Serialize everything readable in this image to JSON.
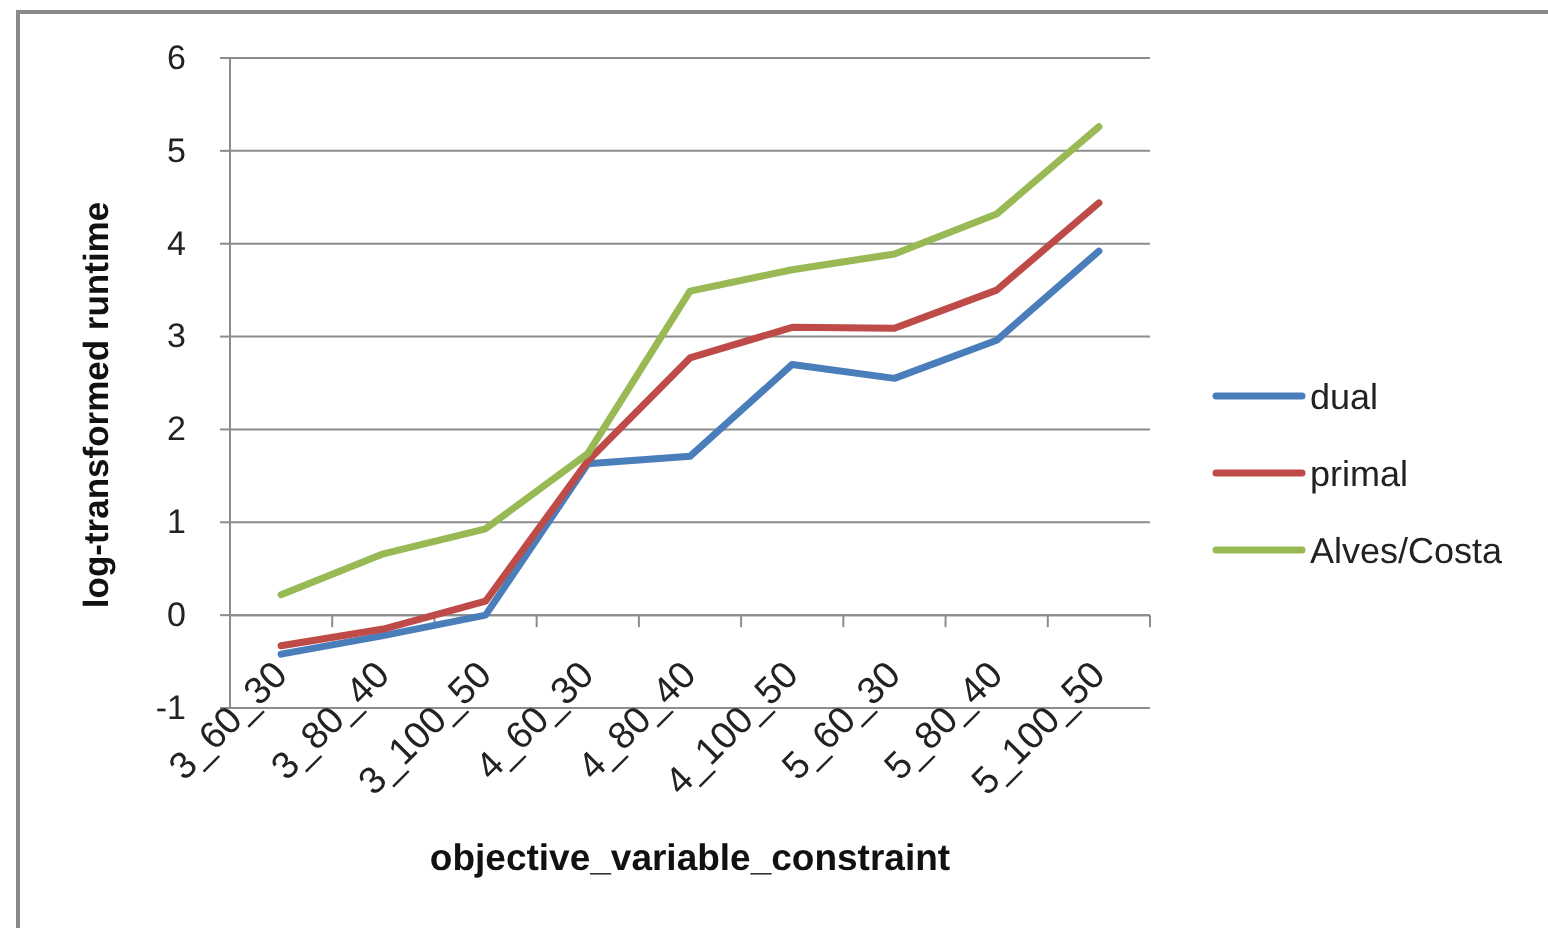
{
  "chart_data": {
    "type": "line",
    "xlabel": "objective_variable_constraint",
    "ylabel": "log-transformed runtime",
    "categories": [
      "3_60_30",
      "3_80_40",
      "3_100_50",
      "4_60_30",
      "4_80_40",
      "4_100_50",
      "5_60_30",
      "5_80_40",
      "5_100_50"
    ],
    "series": [
      {
        "name": "dual",
        "color": "#4a7ebb",
        "values": [
          -0.42,
          -0.22,
          0.0,
          1.63,
          1.71,
          2.7,
          2.55,
          2.96,
          3.92
        ]
      },
      {
        "name": "primal",
        "color": "#be4b48",
        "values": [
          -0.33,
          -0.15,
          0.15,
          1.66,
          2.77,
          3.1,
          3.09,
          3.5,
          4.44
        ]
      },
      {
        "name": "Alves/Costa",
        "color": "#98b954",
        "values": [
          0.22,
          0.66,
          0.93,
          1.74,
          3.49,
          3.72,
          3.89,
          4.32,
          5.26
        ]
      }
    ],
    "ylim": [
      -1,
      6
    ],
    "yticks": [
      -1,
      0,
      1,
      2,
      3,
      4,
      5,
      6
    ],
    "grid": "y",
    "legend": "right",
    "marker": "none",
    "line_style": "solid"
  }
}
